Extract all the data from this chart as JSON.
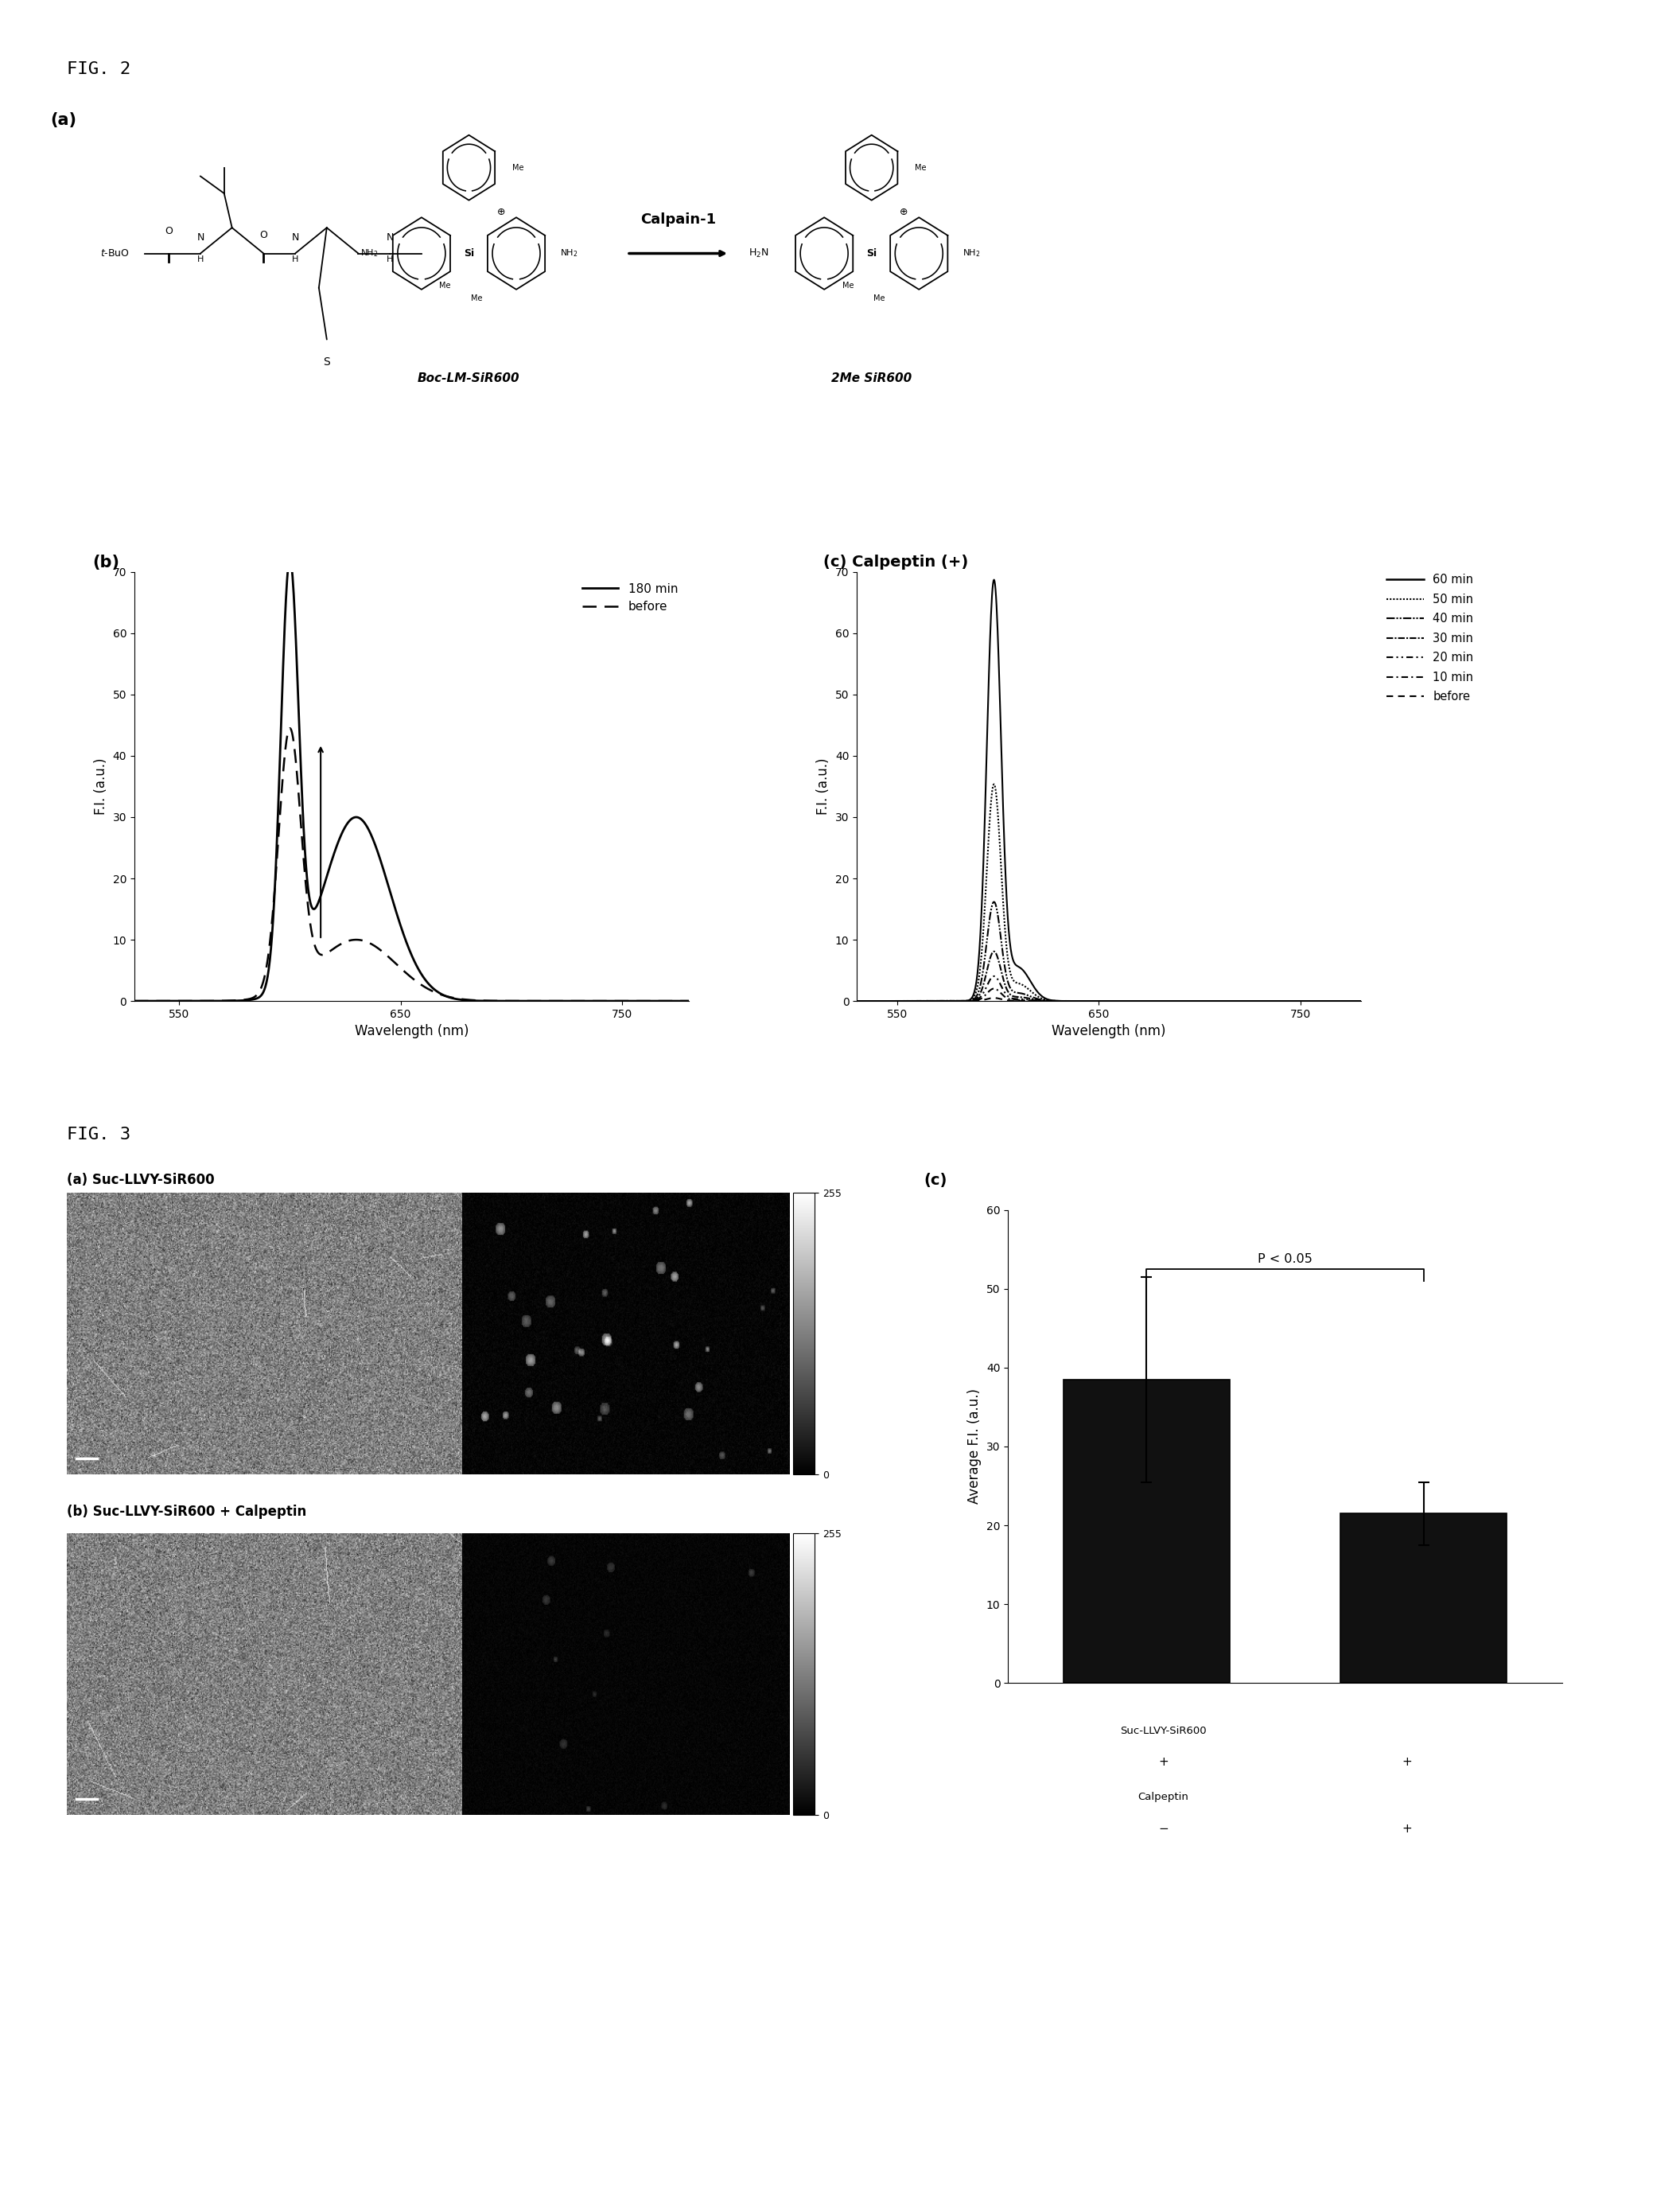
{
  "fig2_label": "FIG. 2",
  "fig3_label": "FIG. 3",
  "panel_a_label": "(a)",
  "panel_b_label": "(b)",
  "panel_c_label": "(c) Calpeptin (+)",
  "panel_c3_label": "(c)",
  "calpain_arrow_text": "Calpain-1",
  "boc_label": "Boc-LM-SiR600",
  "siro_label": "2Me SiR600",
  "fig3a_label": "(a) Suc-LLVY-SiR600",
  "fig3b_label": "(b) Suc-LLVY-SiR600 + Calpeptin",
  "xlabel": "Wavelength (nm)",
  "ylabel_b": "F.I. (a.u.)",
  "ylabel_c3": "Average F.I. (a.u.)",
  "xlim": [
    530,
    780
  ],
  "ylim": [
    0,
    70
  ],
  "xticks": [
    550,
    650,
    750
  ],
  "yticks": [
    0,
    10,
    20,
    30,
    40,
    50,
    60,
    70
  ],
  "bar_values": [
    38.5,
    21.5
  ],
  "bar_errors": [
    13.0,
    4.0
  ],
  "bar_colors": [
    "#111111",
    "#111111"
  ],
  "bar_ylim": [
    0,
    60
  ],
  "bar_yticks": [
    0,
    10,
    20,
    30,
    40,
    50,
    60
  ],
  "p_value_text": "P < 0.05",
  "suc_label": "Suc-LLVY-SiR600",
  "calpeptin_label": "Calpeptin",
  "suc_signs": [
    "+",
    "+"
  ],
  "calp_signs": [
    "−",
    "+"
  ],
  "background_color": "#ffffff",
  "text_color": "#000000",
  "legend_b": [
    "180 min",
    "before"
  ],
  "legend_c": [
    "60 min",
    "50 min",
    "40 min",
    "30 min",
    "20 min",
    "10 min",
    "before"
  ]
}
